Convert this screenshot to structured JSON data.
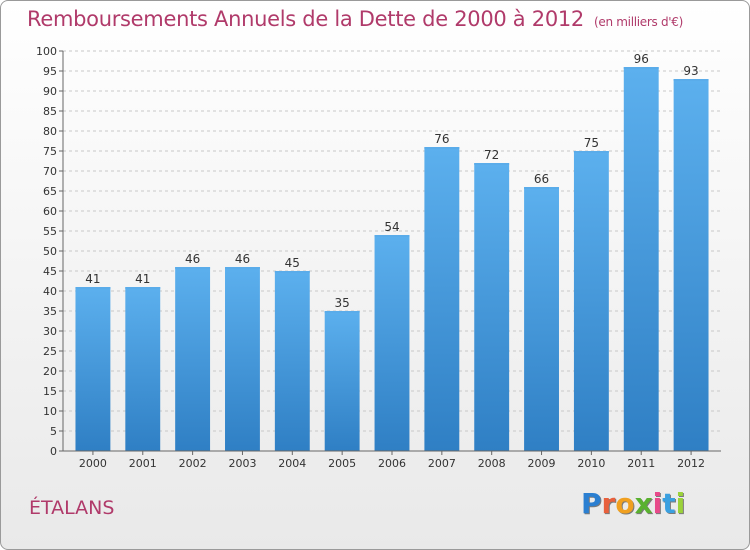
{
  "title": "Remboursements Annuels de la Dette de 2000 à 2012",
  "unit": "(en milliers d'€)",
  "commune": "ÉTALANS",
  "brand": {
    "text": "Proxiti",
    "letter_colors": [
      "#2b7fd1",
      "#e8603c",
      "#f0a020",
      "#5ab130",
      "#e84a8a",
      "#3aa0e0",
      "#9bd23a"
    ]
  },
  "colors": {
    "bar": "#3d92d8",
    "bar_light": "#5aacea",
    "bar_dark": "#2a78c0",
    "text": "#b03a6a"
  },
  "chart_data": {
    "type": "bar",
    "categories": [
      "2000",
      "2001",
      "2002",
      "2003",
      "2004",
      "2005",
      "2006",
      "2007",
      "2008",
      "2009",
      "2010",
      "2011",
      "2012"
    ],
    "values": [
      41,
      41,
      46,
      46,
      45,
      35,
      54,
      76,
      72,
      66,
      75,
      96,
      93
    ],
    "data_labels": [
      "41",
      "41",
      "46",
      "46",
      "45",
      "35",
      "54",
      "76",
      "72",
      "66",
      "75",
      "96",
      "93"
    ],
    "y_ticks": [
      "0",
      "5",
      "10",
      "15",
      "20",
      "25",
      "30",
      "35",
      "40",
      "45",
      "50",
      "55",
      "60",
      "65",
      "70",
      "75",
      "80",
      "85",
      "90",
      "95",
      "100"
    ],
    "ylim": [
      0,
      100
    ],
    "grid": true
  }
}
